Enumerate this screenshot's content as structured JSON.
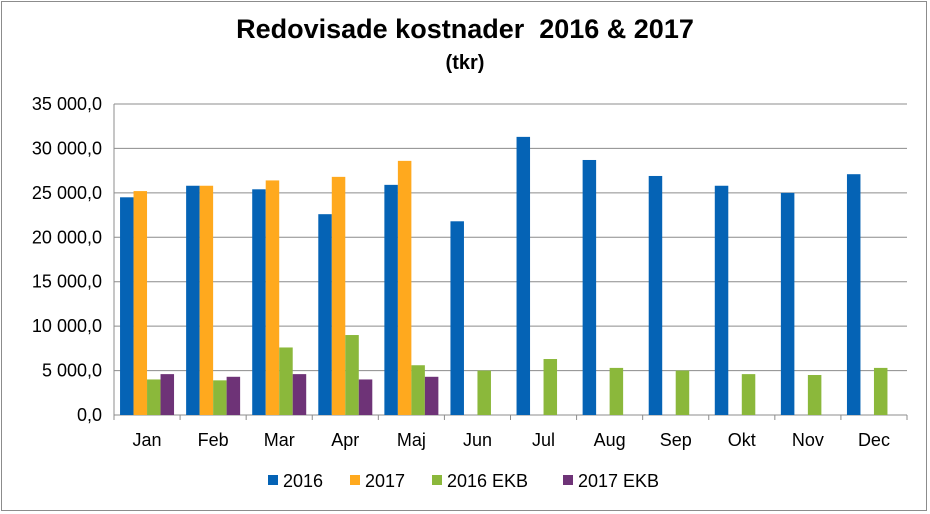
{
  "chart_data": {
    "type": "bar",
    "title": "Redovisade kostnader  2016 & 2017",
    "subtitle": "(tkr)",
    "categories": [
      "Jan",
      "Feb",
      "Mar",
      "Apr",
      "Maj",
      "Jun",
      "Jul",
      "Aug",
      "Sep",
      "Okt",
      "Nov",
      "Dec"
    ],
    "series": [
      {
        "name": "2016",
        "color": "#0563b5",
        "values": [
          24500,
          25800,
          25400,
          22600,
          25900,
          21800,
          31300,
          28700,
          26900,
          25800,
          25000,
          27100
        ]
      },
      {
        "name": "2017",
        "color": "#ffa91e",
        "values": [
          25200,
          25800,
          26400,
          26800,
          28600,
          null,
          null,
          null,
          null,
          null,
          null,
          null
        ]
      },
      {
        "name": "2016 EKB",
        "color": "#8bb83b",
        "values": [
          4000,
          3900,
          7600,
          9000,
          5600,
          5000,
          6300,
          5300,
          5000,
          4600,
          4500,
          5300
        ]
      },
      {
        "name": "2017 EKB",
        "color": "#6e3377",
        "values": [
          4600,
          4300,
          4600,
          4000,
          4300,
          null,
          null,
          null,
          null,
          null,
          null,
          null
        ]
      }
    ],
    "ylim": [
      0,
      35000
    ],
    "yticks": [
      0,
      5000,
      10000,
      15000,
      20000,
      25000,
      30000,
      35000
    ],
    "ytick_labels": [
      "0,0",
      "5 000,0",
      "10 000,0",
      "15 000,0",
      "20 000,0",
      "25 000,0",
      "30 000,0",
      "35 000,0"
    ],
    "grid": true,
    "legend_position": "bottom"
  }
}
